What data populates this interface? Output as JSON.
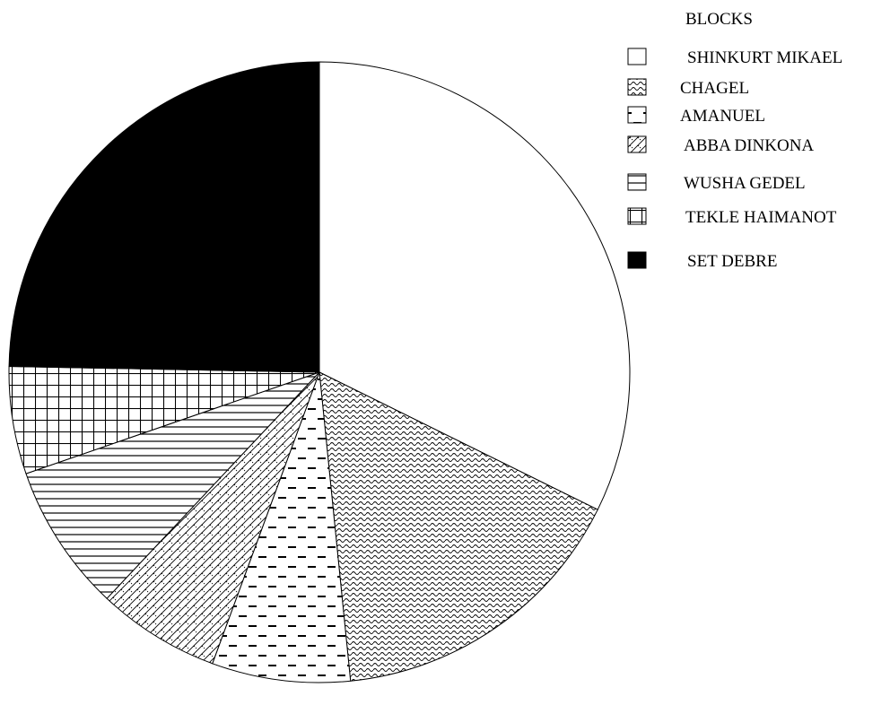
{
  "chart_data": {
    "type": "pie",
    "title": "",
    "legend_title": "BLOCKS",
    "legend_position": "top-right",
    "start_angle": "12 o'clock",
    "direction": "clockwise",
    "slices": [
      {
        "label": "SHINKURT MIKAEL",
        "value": 32.3,
        "pattern": "none"
      },
      {
        "label": "CHAGEL",
        "value": 16.1,
        "pattern": "wave"
      },
      {
        "label": "AMANUEL",
        "value": 7.2,
        "pattern": "dashes"
      },
      {
        "label": "ABBA DINKONA",
        "value": 6.4,
        "pattern": "diagonal-hatch"
      },
      {
        "label": "WUSHA GEDEL",
        "value": 7.7,
        "pattern": "horizontal-lines"
      },
      {
        "label": "TEKLE HAIMANOT",
        "value": 5.6,
        "pattern": "grid"
      },
      {
        "label": "SET DEBRE",
        "value": 24.7,
        "pattern": "solid-black"
      }
    ]
  }
}
